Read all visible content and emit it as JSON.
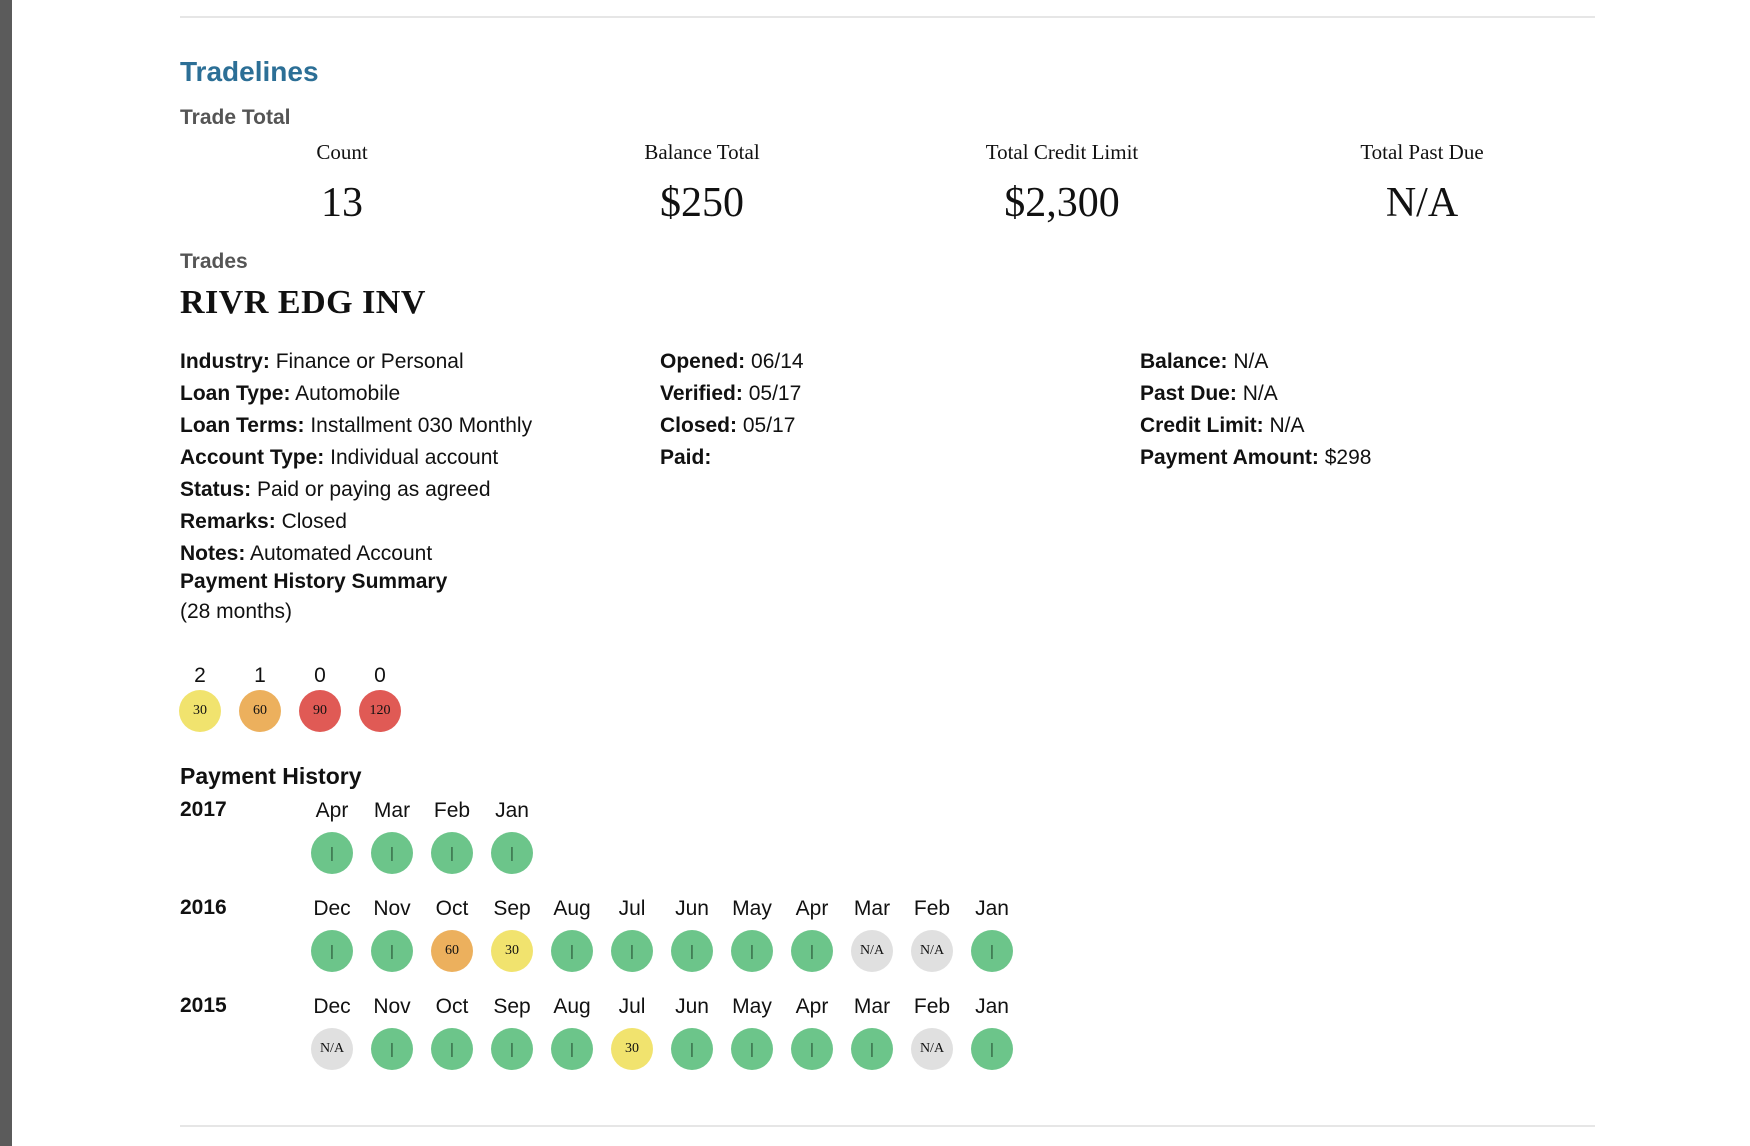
{
  "section_title": "Tradelines",
  "trade_total": {
    "heading": "Trade Total",
    "columns": [
      {
        "label": "Count",
        "value": "13"
      },
      {
        "label": "Balance Total",
        "value": "$250"
      },
      {
        "label": "Total Credit Limit",
        "value": "$2,300"
      },
      {
        "label": "Total Past Due",
        "value": "N/A"
      }
    ]
  },
  "trades_heading": "Trades",
  "trade": {
    "name": "RIVR EDG INV",
    "col1": [
      {
        "label": "Industry:",
        "value": "Finance or Personal"
      },
      {
        "label": "Loan Type:",
        "value": "Automobile"
      },
      {
        "label": "Loan Terms:",
        "value": "Installment 030 Monthly"
      },
      {
        "label": "Account Type:",
        "value": "Individual account"
      },
      {
        "label": "Status:",
        "value": "Paid or paying as agreed"
      },
      {
        "label": "Remarks:",
        "value": "Closed"
      },
      {
        "label": "Notes:",
        "value": "Automated Account"
      }
    ],
    "col2": [
      {
        "label": "Opened:",
        "value": "06/14"
      },
      {
        "label": "Verified:",
        "value": "05/17"
      },
      {
        "label": "Closed:",
        "value": "05/17"
      },
      {
        "label": "Paid:",
        "value": ""
      }
    ],
    "col3": [
      {
        "label": "Balance:",
        "value": "N/A"
      },
      {
        "label": "Past Due:",
        "value": "N/A"
      },
      {
        "label": "Credit Limit:",
        "value": "N/A"
      },
      {
        "label": "Payment Amount:",
        "value": "$298"
      }
    ]
  },
  "summary": {
    "title": "Payment History Summary",
    "subtitle": "(28 months)",
    "buckets": [
      {
        "count": "2",
        "label": "30",
        "color": "#f1e36e"
      },
      {
        "count": "1",
        "label": "60",
        "color": "#ecb05d"
      },
      {
        "count": "0",
        "label": "90",
        "color": "#e05a55"
      },
      {
        "count": "0",
        "label": "120",
        "color": "#e05a55"
      }
    ]
  },
  "history": {
    "title": "Payment History",
    "years": [
      {
        "year": "2017",
        "months": [
          {
            "m": "Apr",
            "s": "|",
            "status": "ok"
          },
          {
            "m": "Mar",
            "s": "|",
            "status": "ok"
          },
          {
            "m": "Feb",
            "s": "|",
            "status": "ok"
          },
          {
            "m": "Jan",
            "s": "|",
            "status": "ok"
          }
        ]
      },
      {
        "year": "2016",
        "months": [
          {
            "m": "Dec",
            "s": "|",
            "status": "ok"
          },
          {
            "m": "Nov",
            "s": "|",
            "status": "ok"
          },
          {
            "m": "Oct",
            "s": "60",
            "status": "60"
          },
          {
            "m": "Sep",
            "s": "30",
            "status": "30"
          },
          {
            "m": "Aug",
            "s": "|",
            "status": "ok"
          },
          {
            "m": "Jul",
            "s": "|",
            "status": "ok"
          },
          {
            "m": "Jun",
            "s": "|",
            "status": "ok"
          },
          {
            "m": "May",
            "s": "|",
            "status": "ok"
          },
          {
            "m": "Apr",
            "s": "|",
            "status": "ok"
          },
          {
            "m": "Mar",
            "s": "N/A",
            "status": "na"
          },
          {
            "m": "Feb",
            "s": "N/A",
            "status": "na"
          },
          {
            "m": "Jan",
            "s": "|",
            "status": "ok"
          }
        ]
      },
      {
        "year": "2015",
        "months": [
          {
            "m": "Dec",
            "s": "N/A",
            "status": "na"
          },
          {
            "m": "Nov",
            "s": "|",
            "status": "ok"
          },
          {
            "m": "Oct",
            "s": "|",
            "status": "ok"
          },
          {
            "m": "Sep",
            "s": "|",
            "status": "ok"
          },
          {
            "m": "Aug",
            "s": "|",
            "status": "ok"
          },
          {
            "m": "Jul",
            "s": "30",
            "status": "30"
          },
          {
            "m": "Jun",
            "s": "|",
            "status": "ok"
          },
          {
            "m": "May",
            "s": "|",
            "status": "ok"
          },
          {
            "m": "Apr",
            "s": "|",
            "status": "ok"
          },
          {
            "m": "Mar",
            "s": "|",
            "status": "ok"
          },
          {
            "m": "Feb",
            "s": "N/A",
            "status": "na"
          },
          {
            "m": "Jan",
            "s": "|",
            "status": "ok"
          }
        ]
      }
    ]
  }
}
